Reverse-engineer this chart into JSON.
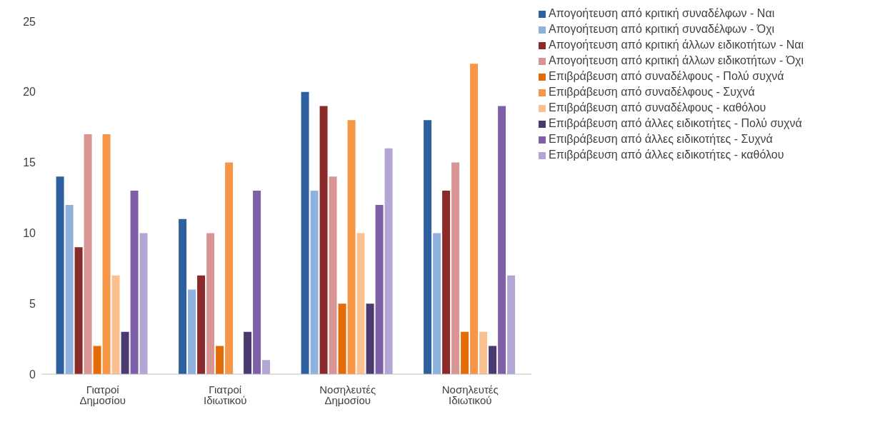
{
  "chart_data": {
    "type": "bar",
    "categories": [
      "Γιατροί Δημοσίου",
      "Γιατροί Ιδιωτικού",
      "Νοσηλευτές Δημοσίου",
      "Νοσηλευτές Ιδιωτικού"
    ],
    "ylim": [
      0,
      25
    ],
    "yticks": [
      0,
      5,
      10,
      15,
      20,
      25
    ],
    "legend": "right",
    "series": [
      {
        "name": "Απογοήτευση από κριτική συναδέλφων - Ναι",
        "color": "#2e5f9e",
        "values": [
          14,
          11,
          20,
          18
        ]
      },
      {
        "name": "Απογοήτευση από κριτική συναδέλφων - Όχι",
        "color": "#8fb1dd",
        "values": [
          12,
          6,
          13,
          10
        ]
      },
      {
        "name": "Απογοήτευση από κριτική άλλων ειδικοτήτων - Ναι",
        "color": "#8b2a2a",
        "values": [
          9,
          7,
          19,
          13
        ]
      },
      {
        "name": "Απογοήτευση από κριτική άλλων ειδικοτήτων - Όχι",
        "color": "#d99594",
        "values": [
          17,
          10,
          14,
          15
        ]
      },
      {
        "name": "Επιβράβευση από συναδέλφους - Πολύ συχνά",
        "color": "#e36c09",
        "values": [
          2,
          2,
          5,
          3
        ]
      },
      {
        "name": "Επιβράβευση από συναδέλφους - Συχνά",
        "color": "#f79646",
        "values": [
          17,
          15,
          18,
          22
        ]
      },
      {
        "name": "Επιβράβευση από συναδέλφους - καθόλου",
        "color": "#fac090",
        "values": [
          7,
          0,
          10,
          3
        ]
      },
      {
        "name": "Επιβράβευση από άλλες ειδικοτήτες - Πολύ συχνά",
        "color": "#4b3a6f",
        "values": [
          3,
          3,
          5,
          2
        ]
      },
      {
        "name": "Επιβράβευση από άλλες ειδικοτήτες - Συχνά",
        "color": "#7f5fa8",
        "values": [
          13,
          13,
          12,
          19
        ]
      },
      {
        "name": "Επιβράβευση από άλλες ειδικοτήτες - καθόλου",
        "color": "#b3a6d4",
        "values": [
          10,
          1,
          16,
          7
        ]
      }
    ]
  }
}
